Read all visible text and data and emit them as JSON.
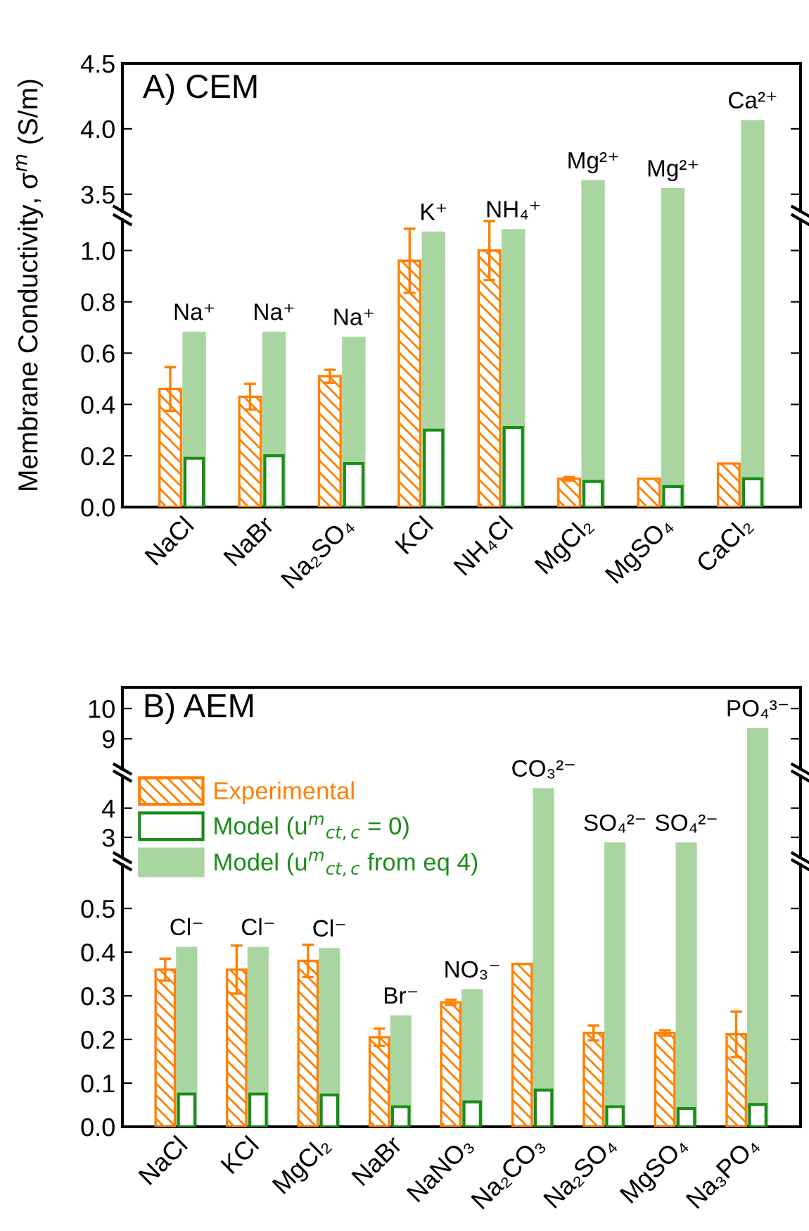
{
  "chart_data": [
    {
      "type": "bar",
      "title": "A) CEM",
      "ylabel": "Membrane Conductivity, σ$^{m}$ (S/m)",
      "categories": [
        "NaCl",
        "NaBr",
        "Na₂SO₄",
        "KCl",
        "NH₄Cl",
        "MgCl₂",
        "MgSO₄",
        "CaCl₂"
      ],
      "series": [
        {
          "color": "#ff7f00",
          "values": [
            null,
            null,
            null,
            null,
            null,
            null,
            null,
            null
          ]
        },
        {
          "color": "#1a8c1a",
          "values": [
            null,
            null,
            null,
            null,
            null,
            null,
            null,
            null
          ]
        },
        {
          "color": "#a9d5a0",
          "values": [
            null,
            null,
            null,
            null,
            null,
            3.6,
            3.54,
            4.06
          ]
        }
      ],
      "ylim": [
        3.37,
        4.5
      ],
      "yticks": [
        {
          "value": 3.5,
          "label": "3.5"
        },
        {
          "value": 4.0,
          "label": "4.0"
        },
        {
          "value": 4.5,
          "label": "4.5"
        }
      ],
      "tick_labels": "y",
      "annotations": [
        {
          "text": "Mg²⁺",
          "x": "MgCl₂",
          "y": 3.6
        },
        {
          "text": "Mg²⁺",
          "x": "MgSO₄",
          "y": 3.54
        },
        {
          "text": "Ca²⁺",
          "x": "CaCl₂",
          "y": 4.06
        }
      ],
      "legend": false,
      "grid": false
    },
    {
      "type": "bar",
      "categories": [
        "NaCl",
        "NaBr",
        "Na₂SO₄",
        "KCl",
        "NH₄Cl",
        "MgCl₂",
        "MgSO₄",
        "CaCl₂"
      ],
      "series": [
        {
          "color": "#ff7f00",
          "values": [
            0.46,
            0.43,
            0.51,
            0.96,
            1.0,
            0.11,
            0.11,
            0.17
          ],
          "errors": [
            0.085,
            0.05,
            0.025,
            0.125,
            0.115,
            0.007,
            null,
            null
          ]
        },
        {
          "color": "#1a8c1a",
          "values": [
            0.19,
            0.2,
            0.17,
            0.3,
            0.31,
            0.1,
            0.08,
            0.11
          ]
        },
        {
          "color": "#a9d5a0",
          "values": [
            0.68,
            0.68,
            0.66,
            1.07,
            1.08,
            null,
            null,
            null
          ]
        }
      ],
      "ylim": [
        0,
        1.12
      ],
      "yticks": [
        {
          "value": 0,
          "label": "0.0"
        },
        {
          "value": 0.2,
          "label": "0.2"
        },
        {
          "value": 0.4,
          "label": "0.4"
        },
        {
          "value": 0.6,
          "label": "0.6"
        },
        {
          "value": 0.8,
          "label": "0.8"
        },
        {
          "value": 1.0,
          "label": "1.0"
        }
      ],
      "annotations": [
        {
          "text": "Na⁺",
          "x": "NaCl",
          "y": 0.68
        },
        {
          "text": "Na⁺",
          "x": "NaBr",
          "y": 0.68
        },
        {
          "text": "Na⁺",
          "x": "Na₂SO₄",
          "y": 0.66
        },
        {
          "text": "K⁺",
          "x": "KCl",
          "y": 1.07
        },
        {
          "text": "NH₄⁺",
          "x": "NH₄Cl",
          "y": 1.08
        }
      ],
      "legend": false,
      "grid": false
    },
    {
      "type": "bar",
      "title": "B) AEM",
      "categories": [
        "NaCl",
        "KCl",
        "MgCl₂",
        "NaBr",
        "NaNO₃",
        "Na₂CO₃",
        "Na₂SO₄",
        "MgSO₄",
        "Na₃PO₄"
      ],
      "series": [
        {
          "color": "#ff7f00",
          "values": [
            null,
            null,
            null,
            null,
            null,
            null,
            null,
            null,
            null
          ]
        },
        {
          "color": "#1a8c1a",
          "values": [
            null,
            null,
            null,
            null,
            null,
            null,
            null,
            null,
            null
          ]
        },
        {
          "color": "#a9d5a0",
          "values": [
            null,
            null,
            null,
            null,
            null,
            null,
            null,
            null,
            9.32
          ]
        }
      ],
      "ylim": [
        8.0,
        10.7
      ],
      "yticks": [
        9,
        10
      ],
      "tick_labels": "y",
      "annotations": [
        {
          "text": "PO₄³⁻",
          "x": "Na₃PO₄",
          "y": 9.32
        }
      ],
      "legend": false,
      "grid": false
    },
    {
      "type": "bar",
      "categories": [
        "NaCl",
        "KCl",
        "MgCl₂",
        "NaBr",
        "NaNO₃",
        "Na₂CO₃",
        "Na₂SO₄",
        "MgSO₄",
        "Na₃PO₄"
      ],
      "series": [
        {
          "color": "#ff7f00",
          "values": [
            null,
            null,
            null,
            null,
            null,
            null,
            null,
            null,
            null
          ]
        },
        {
          "color": "#1a8c1a",
          "values": [
            null,
            null,
            null,
            null,
            null,
            null,
            null,
            null,
            null
          ]
        },
        {
          "color": "#a9d5a0",
          "values": [
            null,
            null,
            null,
            null,
            null,
            4.65,
            2.79,
            2.79,
            null
          ]
        }
      ],
      "ylim": [
        2.3,
        5.1
      ],
      "yticks": [
        3,
        4
      ],
      "tick_labels": "y",
      "annotations": [
        {
          "text": "CO₃²⁻",
          "x": "Na₂CO₃",
          "y": 4.65
        },
        {
          "text": "SO₄²⁻",
          "x": "Na₂SO₄",
          "y": 2.79
        },
        {
          "text": "SO₄²⁻",
          "x": "MgSO₄",
          "y": 2.79
        }
      ],
      "legend": false,
      "grid": false
    },
    {
      "type": "bar",
      "categories": [
        "NaCl",
        "KCl",
        "MgCl₂",
        "NaBr",
        "NaNO₃",
        "Na₂CO₃",
        "Na₂SO₄",
        "MgSO₄",
        "Na₃PO₄"
      ],
      "series": [
        {
          "name": "Experimental",
          "color": "#ff7f00",
          "values": [
            0.36,
            0.36,
            0.38,
            0.205,
            0.285,
            0.373,
            0.215,
            0.215,
            0.212
          ],
          "errors": [
            0.025,
            0.055,
            0.037,
            0.02,
            0.006,
            null,
            0.017,
            0.006,
            0.052
          ]
        },
        {
          "name": "Model (u$^{m}$$_{ct,c}$ = 0)",
          "color": "#1a8c1a",
          "values": [
            0.075,
            0.075,
            0.073,
            0.046,
            0.057,
            0.084,
            0.046,
            0.042,
            0.051
          ]
        },
        {
          "name": "Model (u$^{m}$$_{ct,c}$ from eq 4)",
          "color": "#a9d5a0",
          "values": [
            0.41,
            0.41,
            0.407,
            0.253,
            0.313,
            null,
            null,
            null,
            null
          ]
        }
      ],
      "ylim": [
        0,
        0.6
      ],
      "yticks": [
        {
          "value": 0,
          "label": "0.0"
        },
        {
          "value": 0.1,
          "label": "0.1"
        },
        {
          "value": 0.2,
          "label": "0.2"
        },
        {
          "value": 0.3,
          "label": "0.3"
        },
        {
          "value": 0.4,
          "label": "0.4"
        },
        {
          "value": 0.5,
          "label": "0.5"
        }
      ],
      "annotations": [
        {
          "text": "Cl⁻",
          "x": "NaCl",
          "y": 0.41
        },
        {
          "text": "Cl⁻",
          "x": "KCl",
          "y": 0.41
        },
        {
          "text": "Cl⁻",
          "x": "MgCl₂",
          "y": 0.407
        },
        {
          "text": "Br⁻",
          "x": "NaBr",
          "y": 0.253
        },
        {
          "text": "NO₃⁻",
          "x": "NaNO₃",
          "y": 0.313
        }
      ],
      "legend": "top left",
      "grid": false
    }
  ]
}
